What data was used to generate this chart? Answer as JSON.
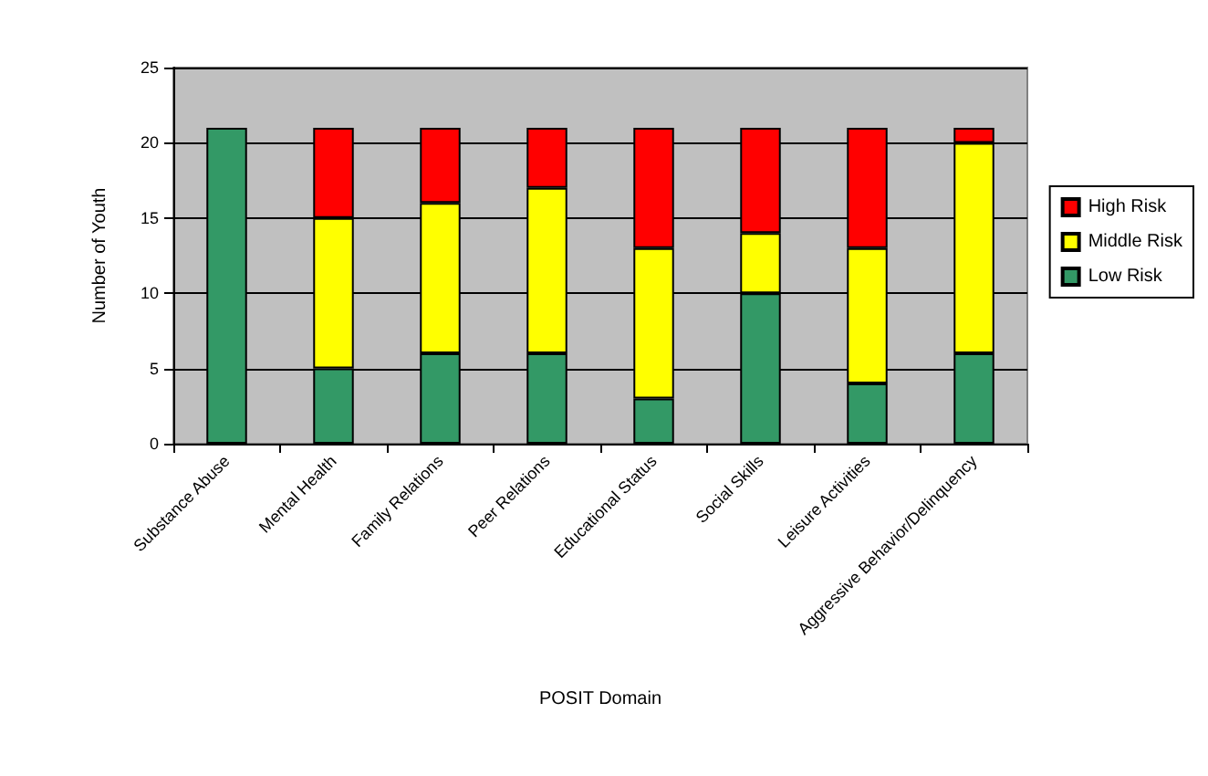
{
  "chart_data": {
    "type": "bar",
    "stacked": true,
    "xlabel": "POSIT Domain",
    "ylabel": "Number of Youth",
    "categories": [
      "Substance Abuse",
      "Mental Health",
      "Family Relations",
      "Peer Relations",
      "Educational Status",
      "Social Skills",
      "Leisure Activities",
      "Aggressive Behavior/Delinquency"
    ],
    "series": [
      {
        "name": "Low Risk",
        "color": "#339966",
        "values": [
          21,
          5,
          6,
          6,
          3,
          10,
          4,
          6
        ]
      },
      {
        "name": "Middle Risk",
        "color": "#ffff00",
        "values": [
          0,
          10,
          10,
          11,
          10,
          4,
          9,
          14
        ]
      },
      {
        "name": "High Risk",
        "color": "#ff0000",
        "values": [
          0,
          6,
          5,
          4,
          8,
          7,
          8,
          1
        ]
      }
    ],
    "ylim": [
      0,
      25
    ],
    "yticks": [
      0,
      5,
      10,
      15,
      20,
      25
    ],
    "grid": "y",
    "legend": "right"
  }
}
